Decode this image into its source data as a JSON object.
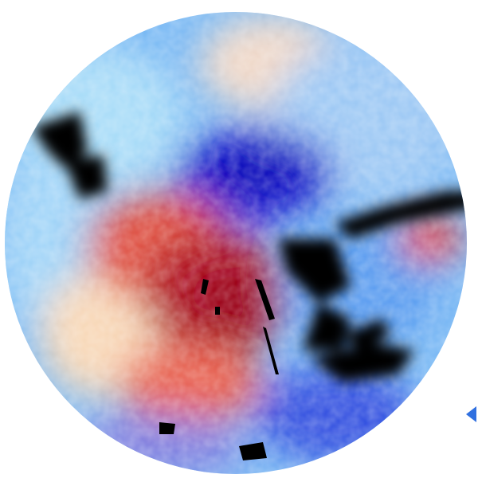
{
  "image": {
    "kind": "radar velocity scan",
    "colors": {
      "background": "#ffffff",
      "strong_inbound": "#1010c8",
      "inbound": "#4a8ff0",
      "light_inbound": "#a8dcf8",
      "neutral": "#f8e8d0",
      "outbound": "#e8604a",
      "strong_outbound": "#a00020",
      "no_data": "#000000"
    }
  }
}
